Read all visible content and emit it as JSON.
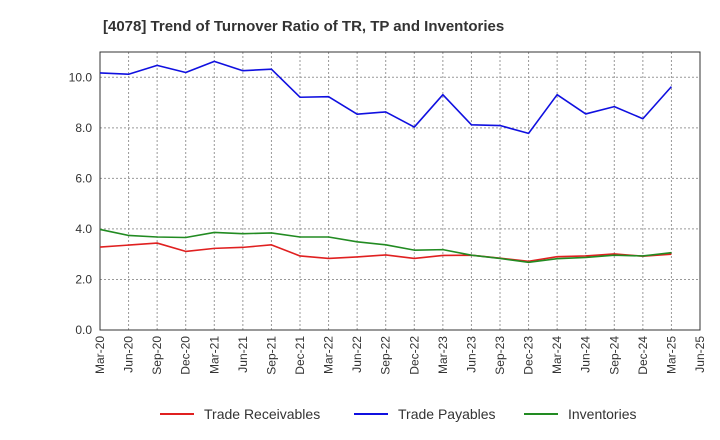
{
  "chart_data": {
    "type": "line",
    "title": "[4078]  Trend of Turnover Ratio of TR, TP and Inventories",
    "xlabel": "",
    "ylabel": "",
    "ylim": [
      0,
      11
    ],
    "yticks": [
      "0.0",
      "2.0",
      "4.0",
      "6.0",
      "8.0",
      "10.0"
    ],
    "xtick_labels": [
      "Mar-20",
      "Jun-20",
      "Sep-20",
      "Dec-20",
      "Mar-21",
      "Jun-21",
      "Sep-21",
      "Dec-21",
      "Mar-22",
      "Jun-22",
      "Sep-22",
      "Dec-22",
      "Mar-23",
      "Jun-23",
      "Sep-23",
      "Dec-23",
      "Mar-24",
      "Jun-24",
      "Sep-24",
      "Dec-24",
      "Mar-25",
      "Jun-25"
    ],
    "x": [
      "Mar-20",
      "Jun-20",
      "Sep-20",
      "Dec-20",
      "Mar-21",
      "Jun-21",
      "Sep-21",
      "Dec-21",
      "Mar-22",
      "Jun-22",
      "Sep-22",
      "Dec-22",
      "Mar-23",
      "Jun-23",
      "Sep-23",
      "Dec-23",
      "Mar-24",
      "Jun-24",
      "Sep-24",
      "Dec-24",
      "Mar-25"
    ],
    "grid": true,
    "legend_position": "bottom",
    "series": [
      {
        "name": "Trade Receivables",
        "color": "#e02020",
        "values": [
          3.28,
          3.36,
          3.44,
          3.11,
          3.23,
          3.27,
          3.37,
          2.93,
          2.83,
          2.89,
          2.97,
          2.83,
          2.95,
          2.96,
          2.84,
          2.72,
          2.9,
          2.93,
          3.01,
          2.92,
          3.0
        ]
      },
      {
        "name": "Trade Payables",
        "color": "#1010e0",
        "values": [
          10.17,
          10.12,
          10.47,
          10.19,
          10.63,
          10.26,
          10.32,
          9.21,
          9.23,
          8.54,
          8.63,
          8.03,
          9.31,
          8.12,
          8.09,
          7.78,
          9.31,
          8.55,
          8.84,
          8.36,
          9.63
        ]
      },
      {
        "name": "Inventories",
        "color": "#228b22",
        "values": [
          3.98,
          3.74,
          3.68,
          3.66,
          3.86,
          3.81,
          3.84,
          3.68,
          3.68,
          3.49,
          3.37,
          3.16,
          3.18,
          2.96,
          2.83,
          2.68,
          2.82,
          2.87,
          2.96,
          2.93,
          3.06
        ]
      }
    ]
  }
}
